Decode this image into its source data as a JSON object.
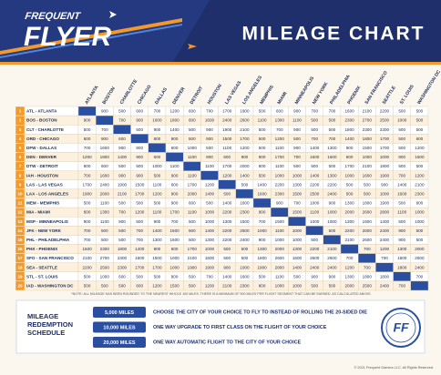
{
  "header": {
    "logo_top": "FREQUENT",
    "logo_main": "FLYER",
    "title": "MILEAGE CHART"
  },
  "table": {
    "columns": [
      "ATLANTA",
      "BOSTON",
      "CHARLOTTE",
      "CHICAGO",
      "DALLAS",
      "DENVER",
      "DETROIT",
      "HOUSTON",
      "LAS VEGAS",
      "LOS ANGELES",
      "MEMPHIS",
      "MIAMI",
      "MINNEAPOLIS",
      "NEW YORK",
      "PHILADELPHIA",
      "PHOENIX",
      "SAN FRANCISCO",
      "SEATTLE",
      "ST. LOUIS",
      "WASHINGTON DC"
    ],
    "rows": [
      {
        "index": 1,
        "label": "ATL - ATLANTA",
        "cells": [
          null,
          900,
          500,
          600,
          700,
          1200,
          600,
          700,
          1700,
          1900,
          500,
          600,
          900,
          700,
          700,
          1600,
          2100,
          2200,
          500,
          500
        ]
      },
      {
        "index": 2,
        "label": "BOS - BOSTON",
        "cells": [
          900,
          null,
          700,
          900,
          1600,
          1800,
          600,
          1600,
          2400,
          2600,
          1100,
          1300,
          1100,
          500,
          500,
          2300,
          2700,
          2500,
          1000,
          500
        ]
      },
      {
        "index": 3,
        "label": "CLT - CHARLOTTE",
        "cells": [
          500,
          700,
          null,
          600,
          900,
          1400,
          500,
          900,
          1900,
          2100,
          500,
          700,
          900,
          500,
          500,
          1800,
          2300,
          2300,
          600,
          500
        ]
      },
      {
        "index": 4,
        "label": "ORD - CHICAGO",
        "cells": [
          600,
          900,
          600,
          null,
          800,
          900,
          500,
          900,
          1500,
          1700,
          500,
          1200,
          500,
          700,
          700,
          1400,
          1800,
          1700,
          500,
          600
        ]
      },
      {
        "index": 5,
        "label": "DFW - DALLAS",
        "cells": [
          700,
          1600,
          900,
          800,
          null,
          600,
          1000,
          500,
          1100,
          1200,
          500,
          1100,
          900,
          1400,
          1300,
          900,
          1500,
          1700,
          500,
          1200
        ]
      },
      {
        "index": 6,
        "label": "DEN - DENVER",
        "cells": [
          1200,
          1800,
          1400,
          900,
          600,
          null,
          1100,
          900,
          600,
          900,
          900,
          1700,
          700,
          1600,
          1600,
          600,
          1000,
          1000,
          800,
          1500
        ]
      },
      {
        "index": 7,
        "label": "DTW - DETROIT",
        "cells": [
          600,
          600,
          500,
          500,
          1000,
          1100,
          null,
          1100,
          1700,
          2000,
          600,
          1100,
          500,
          500,
          500,
          1700,
          2100,
          1900,
          500,
          500
        ]
      },
      {
        "index": 8,
        "label": "IAH - HOUSTON",
        "cells": [
          700,
          1600,
          900,
          900,
          500,
          900,
          1100,
          null,
          1200,
          1400,
          500,
          1000,
          1000,
          1400,
          1300,
          1000,
          1600,
          1900,
          700,
          1200
        ]
      },
      {
        "index": 9,
        "label": "LAS - LAS VEGAS",
        "cells": [
          1700,
          2400,
          1900,
          1500,
          1100,
          600,
          1700,
          1200,
          null,
          500,
          1400,
          2200,
          1300,
          2200,
          2200,
          500,
          500,
          900,
          1400,
          2100
        ]
      },
      {
        "index": 10,
        "label": "LAX - LOS ANGELES",
        "cells": [
          1900,
          2600,
          2100,
          1700,
          1200,
          900,
          2000,
          1400,
          500,
          null,
          1600,
          2300,
          1500,
          2500,
          2400,
          500,
          500,
          1000,
          1600,
          2300
        ]
      },
      {
        "index": 11,
        "label": "MEM - MEMPHIS",
        "cells": [
          500,
          1100,
          500,
          500,
          500,
          900,
          600,
          500,
          1400,
          1600,
          null,
          900,
          700,
          1000,
          900,
          1300,
          1800,
          1900,
          500,
          800
        ]
      },
      {
        "index": 12,
        "label": "MIA - MIAMI",
        "cells": [
          600,
          1300,
          700,
          1200,
          1100,
          1700,
          1100,
          1000,
          2200,
          2300,
          900,
          null,
          1500,
          1100,
          1000,
          2000,
          2600,
          2800,
          1100,
          1000
        ]
      },
      {
        "index": 13,
        "label": "MSP - MINNEAPOLIS",
        "cells": [
          900,
          1100,
          900,
          500,
          900,
          700,
          500,
          1000,
          1300,
          1500,
          700,
          1500,
          null,
          1000,
          1000,
          1300,
          1600,
          1400,
          500,
          1000
        ]
      },
      {
        "index": 14,
        "label": "JFK - NEW YORK",
        "cells": [
          700,
          500,
          500,
          700,
          1400,
          1600,
          500,
          1400,
          2200,
          2500,
          1000,
          1100,
          1000,
          null,
          500,
          2200,
          2600,
          2400,
          900,
          500
        ]
      },
      {
        "index": 15,
        "label": "PHL - PHILADELPHIA",
        "cells": [
          700,
          500,
          500,
          700,
          1300,
          1600,
          500,
          1300,
          2200,
          2400,
          900,
          1000,
          1000,
          500,
          null,
          2100,
          2600,
          2400,
          900,
          500
        ]
      },
      {
        "index": 16,
        "label": "PHX - PHOENIX",
        "cells": [
          1600,
          2300,
          1800,
          1400,
          900,
          600,
          1700,
          1000,
          500,
          500,
          1300,
          2000,
          1300,
          2200,
          2100,
          null,
          700,
          1200,
          1300,
          2000
        ]
      },
      {
        "index": 17,
        "label": "SFO - SAN FRANCISCO",
        "cells": [
          2100,
          2700,
          2300,
          1800,
          1500,
          1000,
          2100,
          1600,
          500,
          500,
          1800,
          2600,
          1600,
          2600,
          2600,
          700,
          null,
          700,
          1800,
          2500
        ]
      },
      {
        "index": 18,
        "label": "SEA - SEATTLE",
        "cells": [
          2200,
          2500,
          2300,
          1700,
          1700,
          1000,
          1900,
          1900,
          900,
          1000,
          1900,
          2800,
          1400,
          2400,
          2400,
          1200,
          700,
          null,
          1800,
          2400
        ]
      },
      {
        "index": 19,
        "label": "STL - ST. LOUIS",
        "cells": [
          500,
          1000,
          600,
          500,
          500,
          800,
          500,
          700,
          1400,
          1600,
          500,
          1100,
          500,
          900,
          900,
          1300,
          1800,
          1800,
          null,
          700
        ]
      },
      {
        "index": 20,
        "label": "IAD - WASHINGTON DC",
        "cells": [
          500,
          500,
          500,
          600,
          1200,
          1500,
          500,
          1200,
          2100,
          2300,
          800,
          1000,
          1000,
          500,
          500,
          2000,
          2500,
          2400,
          700,
          null
        ]
      }
    ]
  },
  "note": "*NOTE: ALL MILEAGE HAS BEEN ROUNDED TO THE NEAREST WHOLE 100 MILES. THERE IS A MINIMUM OF 500 MILES PER FLIGHT SEGMENT THAT CAN BE EARNED. AS CALCULATED ABOVE.",
  "redemption": {
    "title_lines": [
      "MILEAGE",
      "REDEMPTION",
      "SCHEDULE"
    ],
    "items": [
      {
        "miles": "5,000 MILES",
        "reward": "CHOOSE THE CITY OF YOUR CHOICE TO FLY TO INSTEAD OF ROLLING THE 20-SIDED DIE"
      },
      {
        "miles": "10,000 MILES",
        "reward": "ONE WAY UPGRADE TO FIRST CLASS ON THE FLIGHT OF YOUR CHOICE"
      },
      {
        "miles": "20,000 MILES",
        "reward": "ONE WAY AUTOMATIC FLIGHT TO THE CITY OF YOUR CHOICE"
      }
    ]
  },
  "badge": "FF",
  "footer": "© 2021 Frequent Gamers LLC. All Rights Reserved."
}
